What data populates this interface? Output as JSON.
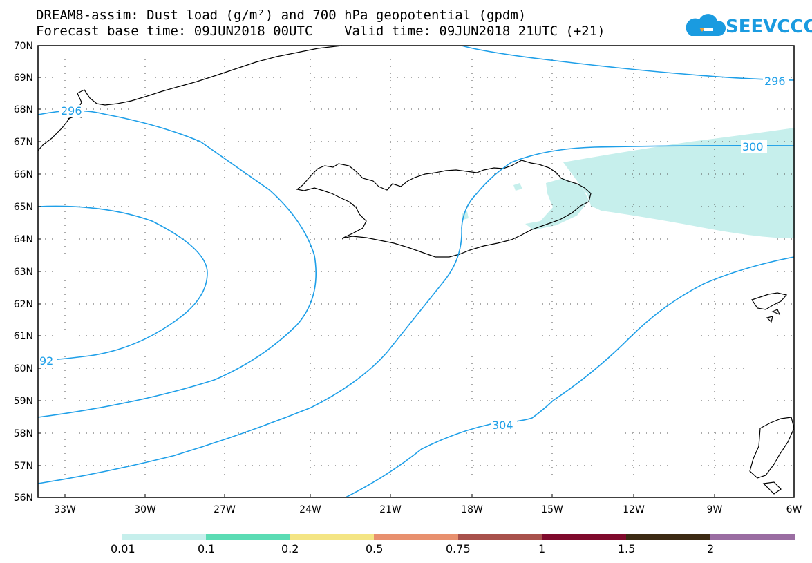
{
  "title_line1": "DREAM8-assim: Dust load (g/m²) and 700 hPa geopotential (gpdm)",
  "title_line2": "Forecast base time: 09JUN2018 00UTC    Valid time: 09JUN2018 21UTC (+21)",
  "logo_text": "SEEVCCC",
  "logo_icon": "cloud-icon",
  "map": {
    "lat_labels": [
      "70N",
      "69N",
      "68N",
      "67N",
      "66N",
      "65N",
      "64N",
      "63N",
      "62N",
      "61N",
      "60N",
      "59N",
      "58N",
      "57N",
      "56N"
    ],
    "lon_labels": [
      "33W",
      "30W",
      "27W",
      "24W",
      "21W",
      "18W",
      "15W",
      "12W",
      "9W",
      "6W"
    ],
    "contour_labels": [
      "296",
      "296",
      "300",
      "304",
      "92"
    ],
    "contour_color": "#1e9fe8",
    "coast_color": "#000000",
    "dust_color": "#c6efec"
  },
  "colorbar": {
    "labels": [
      "0.01",
      "0.1",
      "0.2",
      "0.5",
      "0.75",
      "1",
      "1.5",
      "2"
    ],
    "colors": [
      "#c6efec",
      "#5bdcb4",
      "#f4e584",
      "#e8906e",
      "#a8514c",
      "#7f0a2c",
      "#3c2a14",
      "#9a6da2"
    ]
  }
}
